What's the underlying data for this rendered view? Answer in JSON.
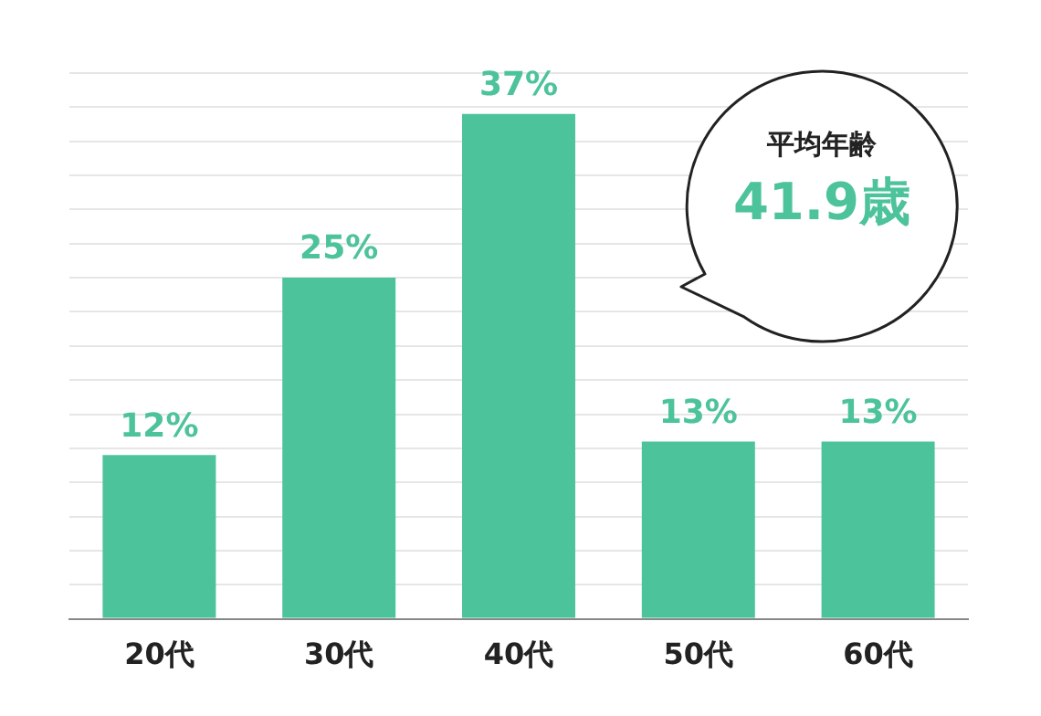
{
  "chart_data": {
    "type": "bar",
    "categories": [
      "20代",
      "30代",
      "40代",
      "50代",
      "60代"
    ],
    "values": [
      12,
      25,
      37,
      13,
      13
    ],
    "value_labels": [
      "12%",
      "25%",
      "37%",
      "13%",
      "13%"
    ],
    "color": "#4dc39b",
    "ylim": [
      0,
      40
    ],
    "yticks": [
      {
        "value": 0,
        "label": null
      },
      {
        "value": 2.5,
        "label": null
      },
      {
        "value": 5,
        "label": null
      },
      {
        "value": 7.5,
        "label": null
      },
      {
        "value": 10,
        "label": null
      },
      {
        "value": 12.5,
        "label": null
      },
      {
        "value": 15,
        "label": null
      },
      {
        "value": 17.5,
        "label": null
      },
      {
        "value": 20,
        "label": null
      },
      {
        "value": 22.5,
        "label": null
      },
      {
        "value": 25,
        "label": null
      },
      {
        "value": 27.5,
        "label": null
      },
      {
        "value": 30,
        "label": null
      },
      {
        "value": 32.5,
        "label": null
      },
      {
        "value": 35,
        "label": null
      },
      {
        "value": 37.5,
        "label": null
      },
      {
        "value": 40,
        "label": null
      }
    ],
    "grid": "y",
    "tick_labels": "x",
    "annotations": [
      "平均年齢",
      "41.9歳"
    ]
  }
}
